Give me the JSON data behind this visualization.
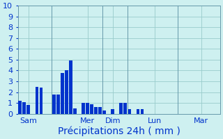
{
  "title": "",
  "xlabel": "Précipitations 24h ( mm )",
  "background_color": "#cef0f0",
  "bar_color": "#0033cc",
  "grid_color": "#99cccc",
  "ylim": [
    0,
    10
  ],
  "yticks": [
    0,
    1,
    2,
    3,
    4,
    5,
    6,
    7,
    8,
    9,
    10
  ],
  "bar_values": [
    1.2,
    1.1,
    0.8,
    0.0,
    2.5,
    2.4,
    0.0,
    0.0,
    1.8,
    1.75,
    3.8,
    4.0,
    4.9,
    0.5,
    0.0,
    1.0,
    1.0,
    0.9,
    0.6,
    0.6,
    0.3,
    0.0,
    0.4,
    0.0,
    1.0,
    1.0,
    0.4,
    0.0,
    0.4,
    0.4,
    0.0,
    0.0,
    0.0,
    0.0,
    0.0,
    0.0,
    0.0,
    0.0,
    0.0,
    0.0,
    0.0,
    0.0,
    0.0,
    0.0,
    0.0,
    0.0,
    0.0,
    0.0
  ],
  "n_bars": 48,
  "day_labels": [
    "Sam",
    "Mer",
    "Dim",
    "Lun",
    "Mar"
  ],
  "day_tick_positions": [
    2,
    16,
    22,
    32,
    43
  ],
  "vline_positions": [
    0,
    8,
    20,
    26,
    38,
    48
  ],
  "xlabel_fontsize": 10,
  "tick_fontsize": 8,
  "label_color": "#0033cc",
  "spine_color": "#6699aa",
  "figsize": [
    3.2,
    2.0
  ],
  "dpi": 100
}
